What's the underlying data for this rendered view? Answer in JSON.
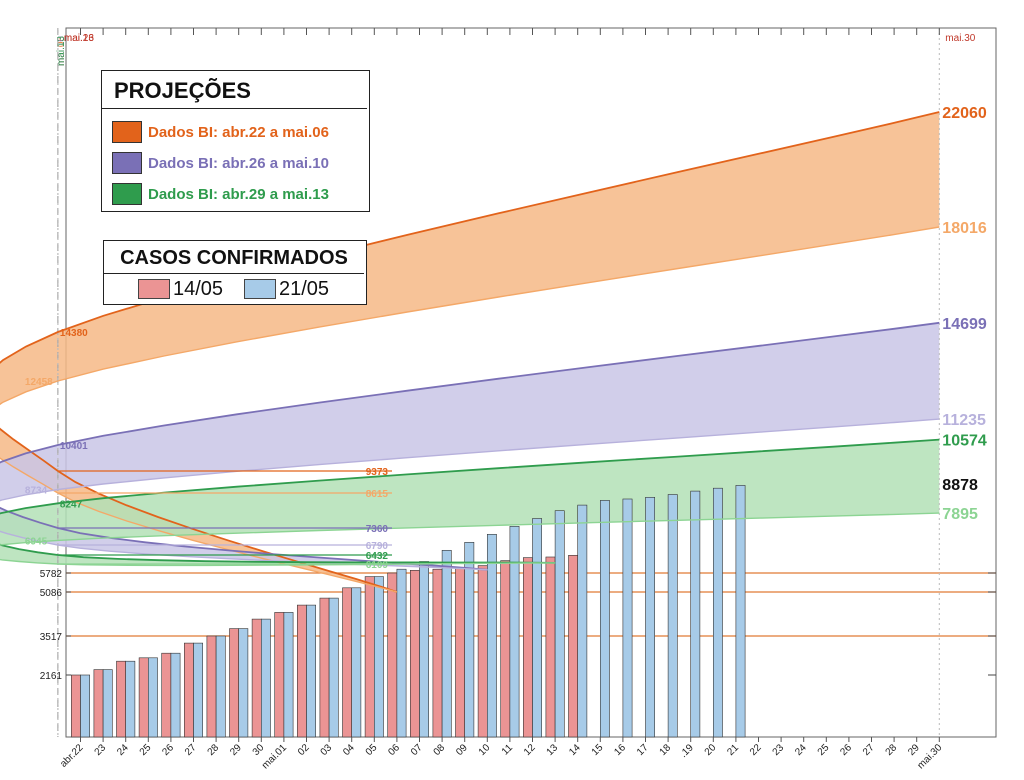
{
  "chart_data": {
    "type": "bar",
    "x_tick_labels": [
      "abr.22",
      "23",
      "24",
      "25",
      "26",
      "27",
      "28",
      "29",
      "30",
      "mai.01",
      "02",
      "03",
      "04",
      "05",
      "06",
      "07",
      "08",
      "09",
      "10",
      "11",
      "12",
      "13",
      "14",
      "15",
      "16",
      "17",
      "18",
      ".19",
      "20",
      "21",
      "22",
      "23",
      "24",
      "25",
      "26",
      "27",
      "28",
      "29",
      "mai.30"
    ],
    "series": [
      {
        "name": "14/05",
        "color": "#eb9494",
        "values": [
          2161,
          2350,
          2640,
          2760,
          2920,
          3270,
          3517,
          3780,
          4120,
          4360,
          4620,
          4870,
          5240,
          5650,
          5782,
          5880,
          5920,
          5960,
          6050,
          6230,
          6340,
          6360,
          6420
        ]
      },
      {
        "name": "21/05",
        "color": "#a7cbe8",
        "values": [
          2161,
          2350,
          2640,
          2760,
          2920,
          3270,
          3517,
          3780,
          4120,
          4360,
          4620,
          4870,
          5240,
          5650,
          5920,
          6200,
          6600,
          6880,
          7150,
          7420,
          7700,
          7980,
          8180,
          8350,
          8400,
          8460,
          8560,
          8680,
          8780,
          8878
        ]
      }
    ],
    "y_tick_labels": [
      2161,
      3517,
      5086,
      5782
    ],
    "reference_lines": [
      {
        "date": "mai.06",
        "color": "#e07a35"
      },
      {
        "date": "mai.10",
        "color": "#8276b6"
      },
      {
        "date": "mai.13",
        "color": "#3a9e58"
      },
      {
        "date": "mai.16",
        "color": "#c0392b"
      },
      {
        "date": "mai.23",
        "color": "#c0392b"
      },
      {
        "date": "mai.30",
        "color": "#c0392b"
      }
    ],
    "horizontal_lines": [
      {
        "value": 5782,
        "color": "#e07a35",
        "label": "5782"
      },
      {
        "value": 5086,
        "color": "#e07a35",
        "label": "5086"
      },
      {
        "value": 3517,
        "color": "#e07a35",
        "label": "3517"
      },
      {
        "value": 2161,
        "color": "#e07a35",
        "label": "2161"
      }
    ],
    "projections": [
      {
        "name": "Dados BI: abr.22 a mai.06",
        "line_color": "#e2631b",
        "fill_color": "#f6b886",
        "start_index": 14,
        "start_value": 5086,
        "upper": {
          "mai.16": 9373,
          "mai.23": 14380,
          "mai.30": 22060
        },
        "lower": {
          "mai.16": 8615,
          "mai.23": 12458,
          "mai.30": 18016
        },
        "upper_color": "#e2631b",
        "lower_color": "#f4a868"
      },
      {
        "name": "Dados BI: abr.26 a mai.10",
        "line_color": "#7a70b6",
        "fill_color": "#c9c6e6",
        "start_index": 18,
        "start_value": 5900,
        "upper": {
          "mai.16": 7360,
          "mai.23": 10401,
          "mai.30": 14699
        },
        "lower": {
          "mai.16": 6790,
          "mai.23": 8734,
          "mai.30": 11235
        },
        "upper_color": "#7a70b6",
        "lower_color": "#b7b1dc"
      },
      {
        "name": "Dados BI: abr.29 a mai.13",
        "line_color": "#2f9c4d",
        "fill_color": "#b3e0b6",
        "start_index": 21,
        "start_value": 6150,
        "upper": {
          "mai.16": 6432,
          "mai.23": 8247,
          "mai.30": 10574
        },
        "lower": {
          "mai.16": 6109,
          "mai.23": 6945,
          "mai.30": 7895
        },
        "upper_color": "#2f9c4d",
        "lower_color": "#8cd493"
      }
    ],
    "end_value_label": {
      "value": "8878",
      "color": "#111111"
    },
    "legend_projections_title": "PROJEÇÕES",
    "legend_cases_title": "CASOS CONFIRMADOS"
  }
}
